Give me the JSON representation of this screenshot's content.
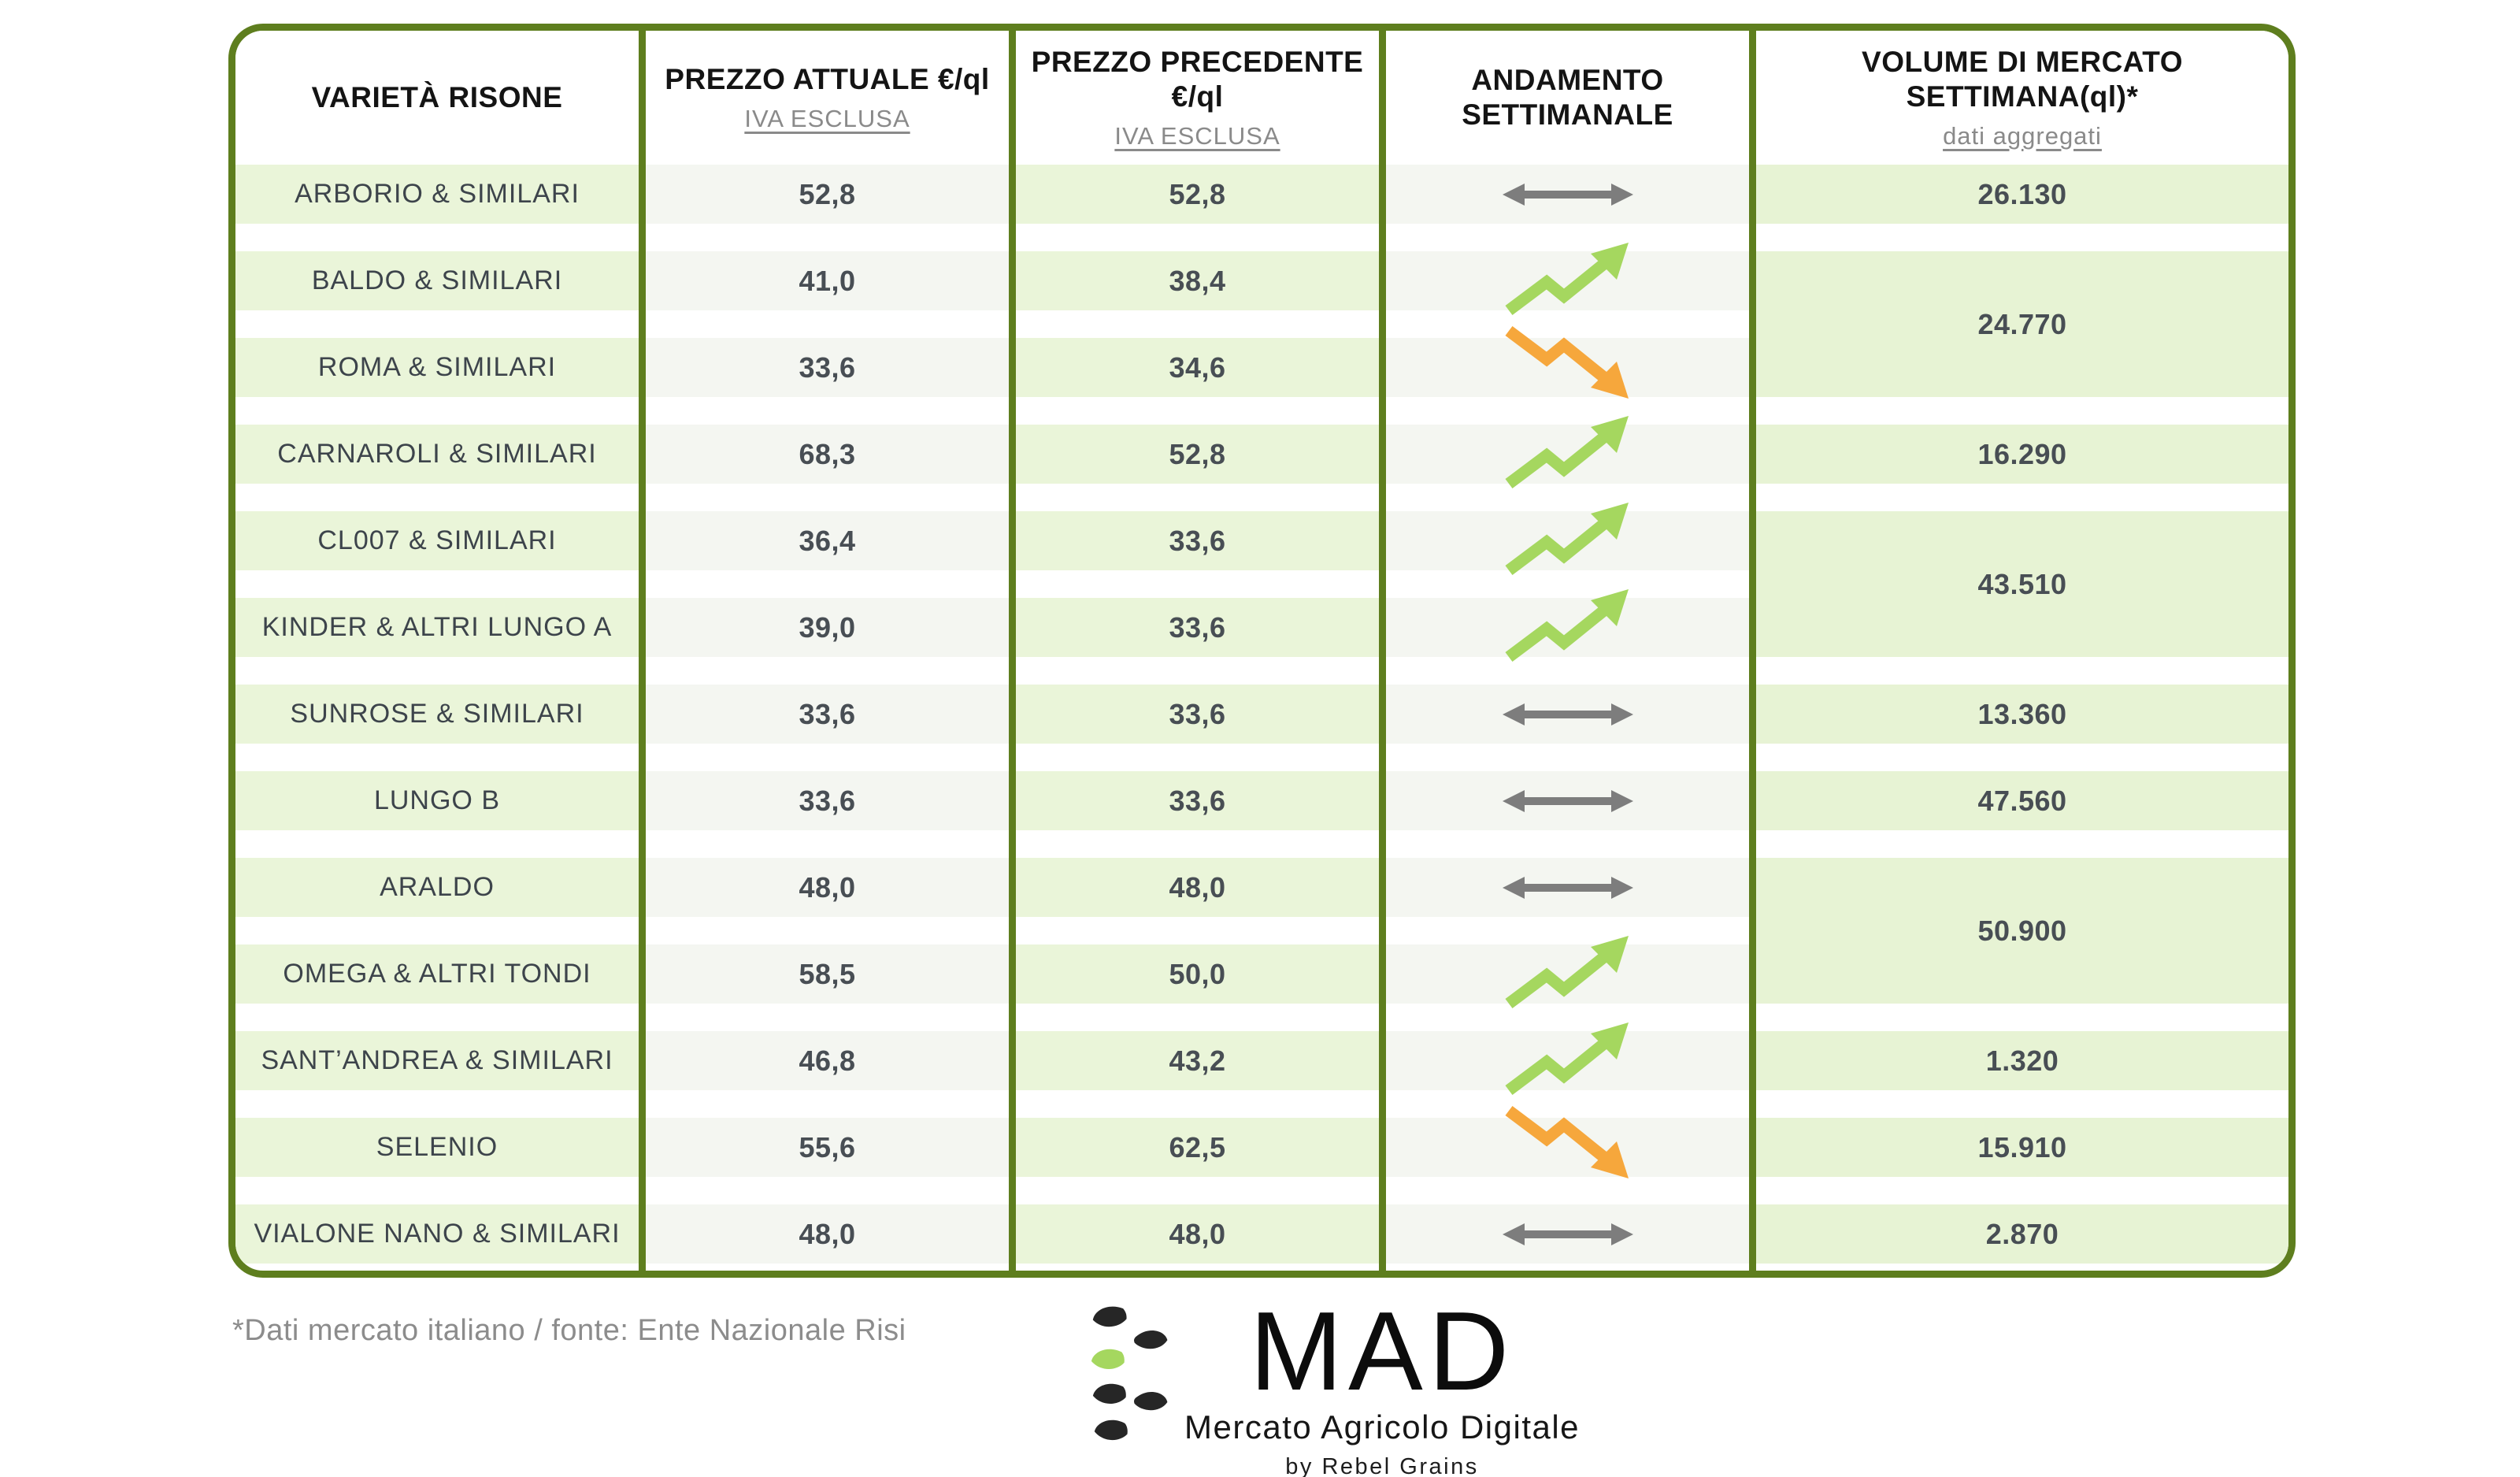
{
  "table": {
    "headers": [
      {
        "title": "VARIETÀ RISONE",
        "subtitle": ""
      },
      {
        "title": "PREZZO ATTUALE €/ql",
        "subtitle": "IVA ESCLUSA"
      },
      {
        "title": "PREZZO PRECEDENTE €/ql",
        "subtitle": "IVA ESCLUSA"
      },
      {
        "title": "ANDAMENTO SETTIMANALE",
        "subtitle": ""
      },
      {
        "title": "VOLUME DI MERCATO SETTIMANA(ql)*",
        "subtitle": "dati aggregati"
      }
    ],
    "rows": [
      {
        "variety": "ARBORIO & SIMILARI",
        "price_current": "52,8",
        "price_previous": "52,8",
        "trend": "steady"
      },
      {
        "variety": "BALDO & SIMILARI",
        "price_current": "41,0",
        "price_previous": "38,4",
        "trend": "up"
      },
      {
        "variety": "ROMA & SIMILARI",
        "price_current": "33,6",
        "price_previous": "34,6",
        "trend": "down"
      },
      {
        "variety": "CARNAROLI & SIMILARI",
        "price_current": "68,3",
        "price_previous": "52,8",
        "trend": "up"
      },
      {
        "variety": "CL007 & SIMILARI",
        "price_current": "36,4",
        "price_previous": "33,6",
        "trend": "up"
      },
      {
        "variety": "KINDER & ALTRI LUNGO A",
        "price_current": "39,0",
        "price_previous": "33,6",
        "trend": "up"
      },
      {
        "variety": "SUNROSE & SIMILARI",
        "price_current": "33,6",
        "price_previous": "33,6",
        "trend": "steady"
      },
      {
        "variety": "LUNGO B",
        "price_current": "33,6",
        "price_previous": "33,6",
        "trend": "steady"
      },
      {
        "variety": "ARALDO",
        "price_current": "48,0",
        "price_previous": "48,0",
        "trend": "steady"
      },
      {
        "variety": "OMEGA & ALTRI TONDI",
        "price_current": "58,5",
        "price_previous": "50,0",
        "trend": "up"
      },
      {
        "variety": "SANT’ANDREA & SIMILARI",
        "price_current": "46,8",
        "price_previous": "43,2",
        "trend": "up"
      },
      {
        "variety": "SELENIO",
        "price_current": "55,6",
        "price_previous": "62,5",
        "trend": "down"
      },
      {
        "variety": "VIALONE NANO & SIMILARI",
        "price_current": "48,0",
        "price_previous": "48,0",
        "trend": "steady"
      }
    ],
    "volume_groups": [
      {
        "value": "26.130",
        "span": 1
      },
      {
        "value": "24.770",
        "span": 2
      },
      {
        "value": "16.290",
        "span": 1
      },
      {
        "value": "43.510",
        "span": 2
      },
      {
        "value": "13.360",
        "span": 1
      },
      {
        "value": "47.560",
        "span": 1
      },
      {
        "value": "50.900",
        "span": 2
      },
      {
        "value": "1.320",
        "span": 1
      },
      {
        "value": "15.910",
        "span": 1
      },
      {
        "value": "2.870",
        "span": 1
      }
    ]
  },
  "chart_data": {
    "type": "table",
    "title": "Prezzi risone e volumi di mercato settimanali",
    "columns": [
      "VARIETÀ RISONE",
      "PREZZO ATTUALE €/ql (IVA ESCLUSA)",
      "PREZZO PRECEDENTE €/ql (IVA ESCLUSA)",
      "ANDAMENTO SETTIMANALE",
      "VOLUME DI MERCATO SETTIMANA(ql)* dati aggregati"
    ],
    "rows": [
      [
        "ARBORIO & SIMILARI",
        52.8,
        52.8,
        "steady",
        "26.130"
      ],
      [
        "BALDO & SIMILARI",
        41.0,
        38.4,
        "up",
        "24.770 (aggregato con ROMA & SIMILARI)"
      ],
      [
        "ROMA & SIMILARI",
        33.6,
        34.6,
        "down",
        "24.770 (aggregato con BALDO & SIMILARI)"
      ],
      [
        "CARNAROLI & SIMILARI",
        68.3,
        52.8,
        "up",
        "16.290"
      ],
      [
        "CL007 & SIMILARI",
        36.4,
        33.6,
        "up",
        "43.510 (aggregato con KINDER & ALTRI LUNGO A)"
      ],
      [
        "KINDER & ALTRI LUNGO A",
        39.0,
        33.6,
        "up",
        "43.510 (aggregato con CL007 & SIMILARI)"
      ],
      [
        "SUNROSE & SIMILARI",
        33.6,
        33.6,
        "steady",
        "13.360"
      ],
      [
        "LUNGO B",
        33.6,
        33.6,
        "steady",
        "47.560"
      ],
      [
        "ARALDO",
        48.0,
        48.0,
        "steady",
        "50.900 (aggregato con OMEGA & ALTRI TONDI)"
      ],
      [
        "OMEGA & ALTRI TONDI",
        58.5,
        50.0,
        "up",
        "50.900 (aggregato con ARALDO)"
      ],
      [
        "SANT’ANDREA & SIMILARI",
        46.8,
        43.2,
        "up",
        "1.320"
      ],
      [
        "SELENIO",
        55.6,
        62.5,
        "down",
        "15.910"
      ],
      [
        "VIALONE NANO & SIMILARI",
        48.0,
        48.0,
        "steady",
        "2.870"
      ]
    ]
  },
  "page": {
    "footnote": "*Dati mercato italiano / fonte: Ente Nazionale Risi"
  },
  "logo": {
    "brand": "MAD",
    "tagline": "Mercato Agricolo Digitale",
    "byline": "by Rebel Grains"
  },
  "colors": {
    "border_olive": "#5e7e1e",
    "cell_green": "#eaf5d9",
    "cell_volume_green": "#e7f3d4",
    "cell_gray": "#f4f6f1",
    "trend_up": "#a5d75f",
    "trend_down": "#f6a73c",
    "trend_steady": "#7d7d7d",
    "text_dark": "#3d444b",
    "text_gray": "#8a8a8a"
  }
}
